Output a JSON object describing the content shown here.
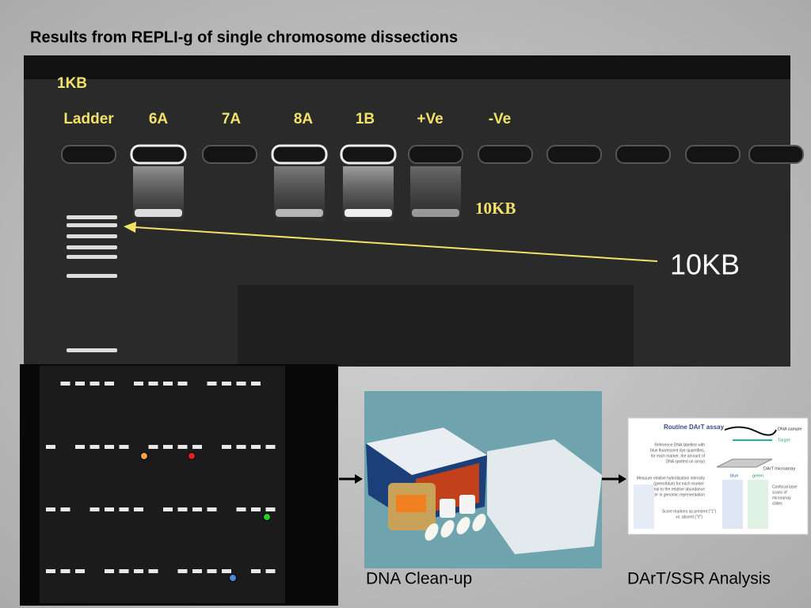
{
  "header": {
    "title": "Results from REPLI-g of single chromosome dissections"
  },
  "gel_image": {
    "lane_header": "1KB",
    "lane_labels": [
      "Ladder",
      "6A",
      "7A",
      "8A",
      "1B",
      "+Ve",
      "-Ve"
    ],
    "band_label": "10KB",
    "annotation": "10KB"
  },
  "captions": [
    "DNA Clean-up",
    "DArT/SSR Analysis"
  ],
  "dart_diagram": {
    "title": "Routine DArT assay",
    "labels": [
      "DNA sample",
      "Target",
      "DArT microarray",
      "blue",
      "green"
    ],
    "scan_note": [
      "Confocal laser",
      "scans of",
      "microarray",
      "slides"
    ],
    "reference_note": [
      "Reference DNA labelled with",
      "blue fluorescent dye quantifies,",
      "for each marker, the amount of",
      "DNA spotted on array)"
    ],
    "measure_note": [
      "Measure relative hybridisation intensity",
      "(green/blue) for each marker:",
      "Proportional to the relative abundance",
      "of marker in genomic representation"
    ],
    "score_note": [
      "Score markers as present (\"1\")",
      "vs. absent (\"0\")"
    ]
  }
}
